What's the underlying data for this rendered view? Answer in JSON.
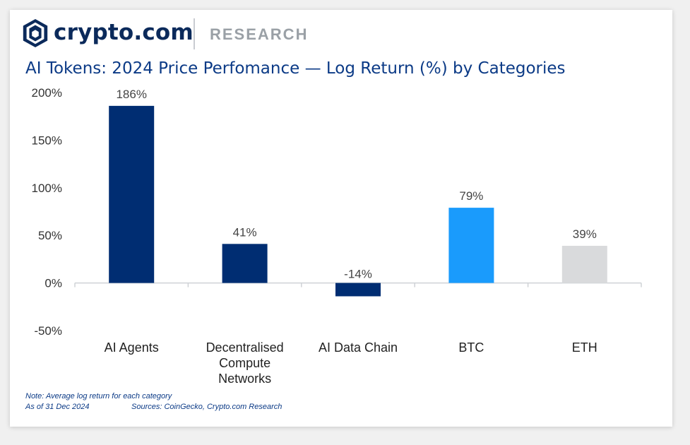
{
  "header": {
    "brand": "crypto.com",
    "section": "RESEARCH"
  },
  "chart_data": {
    "type": "bar",
    "title": "AI Tokens: 2024 Price Perfomance — Log Return (%) by Categories",
    "categories": [
      "AI Agents",
      "Decentralised Compute Networks",
      "AI Data Chain",
      "BTC",
      "ETH"
    ],
    "category_lines": [
      [
        "AI Agents"
      ],
      [
        "Decentralised",
        "Compute",
        "Networks"
      ],
      [
        "AI Data Chain"
      ],
      [
        "BTC"
      ],
      [
        "ETH"
      ]
    ],
    "values": [
      186,
      41,
      -14,
      79,
      39
    ],
    "value_labels": [
      "186%",
      "41%",
      "-14%",
      "79%",
      "39%"
    ],
    "bar_colors": [
      "#002d72",
      "#002d72",
      "#002d72",
      "#1a9bfc",
      "#d9dadc"
    ],
    "ylim": [
      -50,
      200
    ],
    "yticks": [
      -50,
      0,
      50,
      100,
      150,
      200
    ],
    "ytick_labels": [
      "-50%",
      "0%",
      "50%",
      "100%",
      "150%",
      "200%"
    ],
    "grid": false,
    "xlabel": "",
    "ylabel": ""
  },
  "footer": {
    "note": "Note: Average log return for each category",
    "date": "As of 31 Dec 2024",
    "sources": "Sources: CoinGecko, Crypto.com Research"
  },
  "colors": {
    "brand_navy": "#0b2a5b",
    "title_blue": "#0b3a86"
  },
  "icons": {
    "logo": "crypto-com-lion-shield-icon"
  }
}
